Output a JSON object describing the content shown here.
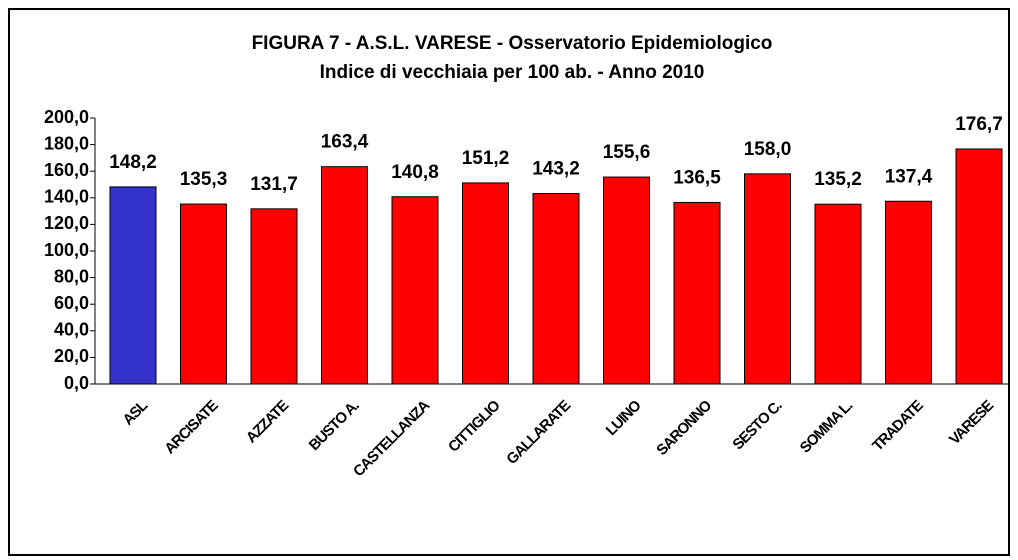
{
  "chart_data": {
    "type": "bar",
    "title": "FIGURA 7 -  A.S.L.  VARESE - Osservatorio Epidemiologico",
    "subtitle": "Indice di vecchiaia per 100 ab. - Anno 2010",
    "categories": [
      "ASL",
      "ARCISATE",
      "AZZATE",
      "BUSTO A.",
      "CASTELLANZA",
      "CITTIGLIO",
      "GALLARATE",
      "LUINO",
      "SARONNO",
      "SESTO C.",
      "SOMMA L.",
      "TRADATE",
      "VARESE"
    ],
    "values": [
      148.2,
      135.3,
      131.7,
      163.4,
      140.8,
      151.2,
      143.2,
      155.6,
      136.5,
      158.0,
      135.2,
      137.4,
      176.7
    ],
    "value_labels": [
      "148,2",
      "135,3",
      "131,7",
      "163,4",
      "140,8",
      "151,2",
      "143,2",
      "155,6",
      "136,5",
      "158,0",
      "135,2",
      "137,4",
      "176,7"
    ],
    "colors": [
      "#3333cc",
      "#ff0000",
      "#ff0000",
      "#ff0000",
      "#ff0000",
      "#ff0000",
      "#ff0000",
      "#ff0000",
      "#ff0000",
      "#ff0000",
      "#ff0000",
      "#ff0000",
      "#ff0000"
    ],
    "ylim": [
      0,
      200
    ],
    "yticks": [
      {
        "value": 0,
        "label": "0,0"
      },
      {
        "value": 20,
        "label": "20,0"
      },
      {
        "value": 40,
        "label": "40,0"
      },
      {
        "value": 60,
        "label": "60,0"
      },
      {
        "value": 80,
        "label": "80,0"
      },
      {
        "value": 100,
        "label": "100,0"
      },
      {
        "value": 120,
        "label": "120,0"
      },
      {
        "value": 140,
        "label": "140,0"
      },
      {
        "value": 160,
        "label": "160,0"
      },
      {
        "value": 180,
        "label": "180,0"
      },
      {
        "value": 200,
        "label": "200,0"
      }
    ],
    "grid": false
  }
}
